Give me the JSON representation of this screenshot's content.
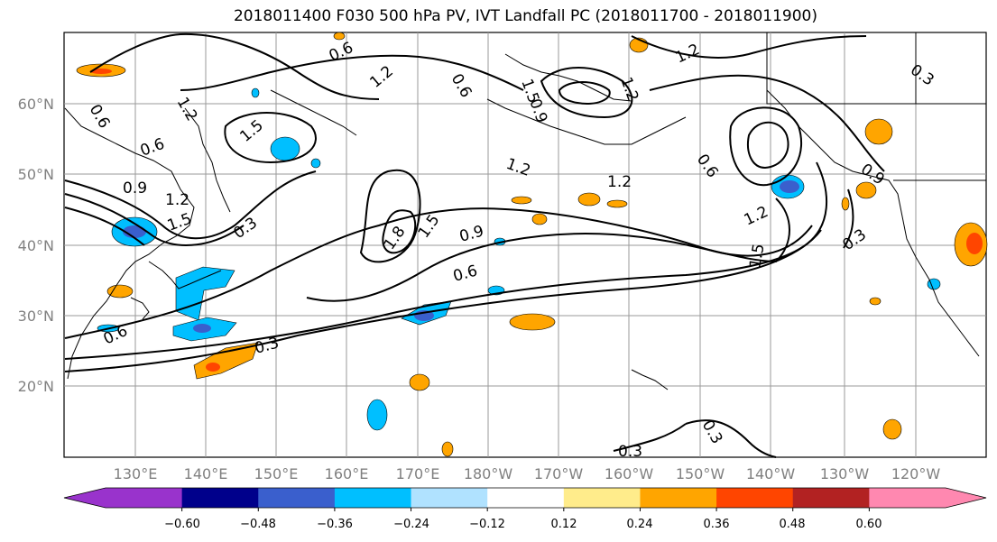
{
  "title": "2018011400 F030 500 hPa PV, IVT Landfall PC (2018011700 - 2018011900)",
  "lat_labels": [
    "60°N",
    "50°N",
    "40°N",
    "30°N",
    "20°N"
  ],
  "lon_labels": [
    "130°E",
    "140°E",
    "150°E",
    "160°E",
    "170°E",
    "180°W",
    "170°W",
    "160°W",
    "150°W",
    "140°W",
    "130°W",
    "120°W"
  ],
  "contour_labels": [
    "0.6",
    "1.2",
    "0.6",
    "1.2",
    "1.5",
    "0.9",
    "1.2",
    "1.2",
    "0.3",
    "1.2",
    "0.6",
    "1.5",
    "0.9",
    "1.2",
    "1.5",
    "0.3",
    "0.6",
    "1.2",
    "0.6",
    "1.8",
    "1.5",
    "0.9",
    "0.6",
    "0.3",
    "0.6",
    "0.9",
    "1.5",
    "1.2",
    "0.3",
    "0.3",
    "0.3"
  ],
  "colorbar": {
    "ticks": [
      "−0.60",
      "−0.48",
      "−0.36",
      "−0.24",
      "−0.12",
      "0.12",
      "0.24",
      "0.36",
      "0.48",
      "0.60"
    ],
    "colors": [
      "#9933cc",
      "#00008b",
      "#3a5fcd",
      "#00bfff",
      "#b0e2ff",
      "#ffffff",
      "#ffec8b",
      "#ffa500",
      "#ff4500",
      "#b22222",
      "#ff88b0",
      "#ff88b0"
    ]
  }
}
